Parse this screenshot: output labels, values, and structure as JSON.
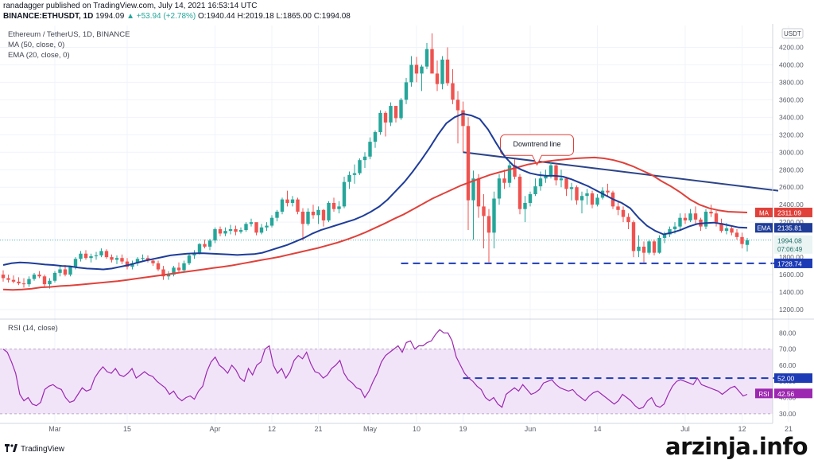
{
  "header": {
    "line1": "ranadagger published on TradingView.com, July 14, 2021 16:53:14 UTC",
    "symbol": "BINANCE:ETHUSDT, 1D",
    "price": "1994.09",
    "change": "▲ +53.94 (+2.78%)",
    "ohlc": "O:1940.44 H:2019.18 L:1865.00 C:1994.08"
  },
  "legend": {
    "title": "Ethereum / TetherUS, 1D, BINANCE",
    "ma": "MA (50, close, 0)",
    "ema": "EMA (20, close, 0)",
    "rsi": "RSI (14, close)"
  },
  "brand": "TradingView",
  "watermark": "arzinja.info",
  "colors": {
    "up": "#26a69a",
    "down": "#ef5350",
    "ma": "#e0413a",
    "ema": "#1e3c98",
    "trend": "#2c4488",
    "support": "#1d3bb5",
    "rsi": "#9c27b0",
    "rsi_band": "#f1e4f9"
  },
  "chart_data": [
    {
      "type": "candlestick",
      "title": "Ethereum / TetherUS, 1D, BINANCE",
      "currency_label": "USDT",
      "yticks": [
        1200,
        1400,
        1600,
        1800,
        2000,
        2200,
        2400,
        2600,
        2800,
        3000,
        3200,
        3400,
        3600,
        3800,
        4000,
        4200
      ],
      "ylim": [
        1100,
        4450
      ],
      "xticks": [
        {
          "label": "Mar",
          "day": 10
        },
        {
          "label": "15",
          "day": 24
        },
        {
          "label": "Apr",
          "day": 41
        },
        {
          "label": "12",
          "day": 52
        },
        {
          "label": "21",
          "day": 61
        },
        {
          "label": "May",
          "day": 71
        },
        {
          "label": "10",
          "day": 80
        },
        {
          "label": "19",
          "day": 89
        },
        {
          "label": "Jun",
          "day": 102
        },
        {
          "label": "14",
          "day": 115
        },
        {
          "label": "Jul",
          "day": 132
        },
        {
          "label": "12",
          "day": 143
        },
        {
          "label": "21",
          "day": 152
        }
      ],
      "candles": [
        [
          1600,
          1650,
          1520,
          1560
        ],
        [
          1560,
          1600,
          1510,
          1540
        ],
        [
          1540,
          1590,
          1500,
          1520
        ],
        [
          1520,
          1570,
          1480,
          1500
        ],
        [
          1500,
          1560,
          1450,
          1490
        ],
        [
          1490,
          1580,
          1460,
          1550
        ],
        [
          1550,
          1620,
          1530,
          1600
        ],
        [
          1600,
          1640,
          1560,
          1580
        ],
        [
          1580,
          1600,
          1460,
          1490
        ],
        [
          1490,
          1560,
          1440,
          1530
        ],
        [
          1530,
          1640,
          1510,
          1620
        ],
        [
          1620,
          1700,
          1580,
          1660
        ],
        [
          1660,
          1710,
          1580,
          1600
        ],
        [
          1600,
          1700,
          1580,
          1690
        ],
        [
          1690,
          1800,
          1660,
          1780
        ],
        [
          1780,
          1870,
          1750,
          1840
        ],
        [
          1840,
          1880,
          1770,
          1790
        ],
        [
          1790,
          1840,
          1740,
          1810
        ],
        [
          1810,
          1860,
          1770,
          1820
        ],
        [
          1820,
          1900,
          1800,
          1870
        ],
        [
          1870,
          1890,
          1780,
          1800
        ],
        [
          1800,
          1830,
          1740,
          1770
        ],
        [
          1770,
          1820,
          1720,
          1790
        ],
        [
          1790,
          1830,
          1720,
          1750
        ],
        [
          1750,
          1790,
          1660,
          1690
        ],
        [
          1690,
          1760,
          1660,
          1730
        ],
        [
          1730,
          1800,
          1700,
          1780
        ],
        [
          1780,
          1830,
          1750,
          1790
        ],
        [
          1790,
          1820,
          1740,
          1760
        ],
        [
          1760,
          1790,
          1700,
          1730
        ],
        [
          1730,
          1760,
          1640,
          1660
        ],
        [
          1660,
          1700,
          1540,
          1580
        ],
        [
          1580,
          1640,
          1540,
          1600
        ],
        [
          1600,
          1700,
          1580,
          1680
        ],
        [
          1680,
          1740,
          1620,
          1650
        ],
        [
          1650,
          1760,
          1630,
          1730
        ],
        [
          1730,
          1840,
          1710,
          1820
        ],
        [
          1820,
          1880,
          1780,
          1840
        ],
        [
          1840,
          1960,
          1830,
          1950
        ],
        [
          1950,
          2000,
          1900,
          1920
        ],
        [
          1920,
          2010,
          1880,
          1990
        ],
        [
          1990,
          2140,
          1960,
          2120
        ],
        [
          2120,
          2150,
          2040,
          2070
        ],
        [
          2070,
          2140,
          2040,
          2100
        ],
        [
          2100,
          2170,
          2060,
          2120
        ],
        [
          2120,
          2160,
          2050,
          2090
        ],
        [
          2090,
          2140,
          2070,
          2110
        ],
        [
          2110,
          2200,
          2090,
          2180
        ],
        [
          2180,
          2240,
          2150,
          2200
        ],
        [
          2200,
          2190,
          2050,
          2080
        ],
        [
          2080,
          2180,
          2060,
          2140
        ],
        [
          2140,
          2200,
          2100,
          2160
        ],
        [
          2160,
          2280,
          2140,
          2250
        ],
        [
          2250,
          2340,
          2210,
          2320
        ],
        [
          2320,
          2480,
          2290,
          2460
        ],
        [
          2460,
          2560,
          2380,
          2420
        ],
        [
          2420,
          2500,
          2380,
          2460
        ],
        [
          2460,
          2480,
          2290,
          2320
        ],
        [
          2320,
          2360,
          1990,
          2180
        ],
        [
          2180,
          2360,
          2160,
          2320
        ],
        [
          2320,
          2400,
          2240,
          2280
        ],
        [
          2280,
          2380,
          2180,
          2340
        ],
        [
          2340,
          2350,
          2150,
          2220
        ],
        [
          2220,
          2440,
          2200,
          2420
        ],
        [
          2420,
          2480,
          2320,
          2350
        ],
        [
          2350,
          2440,
          2300,
          2380
        ],
        [
          2380,
          2720,
          2360,
          2660
        ],
        [
          2660,
          2780,
          2580,
          2740
        ],
        [
          2740,
          2860,
          2640,
          2760
        ],
        [
          2760,
          2930,
          2740,
          2910
        ],
        [
          2910,
          3000,
          2820,
          2950
        ],
        [
          2950,
          3170,
          2920,
          3120
        ],
        [
          3120,
          3250,
          3050,
          3230
        ],
        [
          3230,
          3480,
          3200,
          3450
        ],
        [
          3450,
          3470,
          3180,
          3340
        ],
        [
          3340,
          3570,
          3300,
          3530
        ],
        [
          3530,
          3520,
          3340,
          3390
        ],
        [
          3390,
          3620,
          3370,
          3600
        ],
        [
          3600,
          3850,
          3550,
          3800
        ],
        [
          3800,
          4100,
          3750,
          4000
        ],
        [
          4000,
          4090,
          3800,
          3900
        ],
        [
          3900,
          4000,
          3700,
          3980
        ],
        [
          3980,
          4250,
          3950,
          4180
        ],
        [
          4180,
          4360,
          3930,
          3900
        ],
        [
          3900,
          4050,
          3700,
          3780
        ],
        [
          3780,
          4100,
          3720,
          4060
        ],
        [
          4060,
          4200,
          3760,
          3790
        ],
        [
          3790,
          3950,
          3550,
          3600
        ],
        [
          3600,
          3700,
          3100,
          3480
        ],
        [
          3480,
          3580,
          3000,
          3300
        ],
        [
          3300,
          3400,
          2110,
          2450
        ],
        [
          2450,
          2790,
          2000,
          2700
        ],
        [
          2700,
          2750,
          2250,
          2380
        ],
        [
          2380,
          2520,
          1900,
          2270
        ],
        [
          2270,
          2350,
          1740,
          2080
        ],
        [
          2080,
          2550,
          1900,
          2470
        ],
        [
          2470,
          2750,
          2400,
          2700
        ],
        [
          2700,
          2800,
          2580,
          2650
        ],
        [
          2650,
          2900,
          2600,
          2850
        ],
        [
          2850,
          2920,
          2690,
          2720
        ],
        [
          2720,
          2750,
          2290,
          2350
        ],
        [
          2350,
          2500,
          2200,
          2420
        ],
        [
          2420,
          2550,
          2380,
          2520
        ],
        [
          2520,
          2700,
          2500,
          2610
        ],
        [
          2610,
          2780,
          2560,
          2700
        ],
        [
          2700,
          2800,
          2650,
          2730
        ],
        [
          2730,
          2890,
          2700,
          2850
        ],
        [
          2850,
          2870,
          2620,
          2680
        ],
        [
          2680,
          2800,
          2600,
          2700
        ],
        [
          2700,
          2720,
          2500,
          2580
        ],
        [
          2580,
          2650,
          2450,
          2600
        ],
        [
          2600,
          2620,
          2400,
          2450
        ],
        [
          2450,
          2550,
          2300,
          2500
        ],
        [
          2500,
          2580,
          2400,
          2530
        ],
        [
          2530,
          2560,
          2360,
          2400
        ],
        [
          2400,
          2520,
          2380,
          2480
        ],
        [
          2480,
          2600,
          2460,
          2560
        ],
        [
          2560,
          2640,
          2500,
          2540
        ],
        [
          2540,
          2560,
          2350,
          2380
        ],
        [
          2380,
          2430,
          2280,
          2340
        ],
        [
          2340,
          2380,
          2200,
          2260
        ],
        [
          2260,
          2300,
          2120,
          2200
        ],
        [
          2200,
          2220,
          1800,
          1870
        ],
        [
          1870,
          2050,
          1800,
          1920
        ],
        [
          1920,
          1980,
          1740,
          1850
        ],
        [
          1850,
          2000,
          1830,
          1980
        ],
        [
          1980,
          2000,
          1820,
          1850
        ],
        [
          1850,
          2050,
          1840,
          2020
        ],
        [
          2020,
          2090,
          1960,
          2060
        ],
        [
          2060,
          2150,
          2030,
          2120
        ],
        [
          2120,
          2200,
          2070,
          2150
        ],
        [
          2150,
          2300,
          2100,
          2250
        ],
        [
          2250,
          2300,
          2180,
          2220
        ],
        [
          2220,
          2350,
          2200,
          2300
        ],
        [
          2300,
          2380,
          2180,
          2230
        ],
        [
          2230,
          2250,
          2100,
          2150
        ],
        [
          2150,
          2350,
          2120,
          2320
        ],
        [
          2320,
          2400,
          2260,
          2300
        ],
        [
          2300,
          2330,
          2150,
          2190
        ],
        [
          2190,
          2240,
          2080,
          2100
        ],
        [
          2100,
          2190,
          2060,
          2130
        ],
        [
          2130,
          2160,
          2050,
          2080
        ],
        [
          2080,
          2120,
          2000,
          2030
        ],
        [
          2030,
          2080,
          1900,
          1950
        ],
        [
          1940,
          2020,
          1865,
          1994
        ]
      ],
      "ma50": [
        1430,
        1425,
        1430,
        1440,
        1455,
        1460,
        1470,
        1475,
        1485,
        1495,
        1505,
        1515,
        1525,
        1540,
        1555,
        1570,
        1585,
        1600,
        1615,
        1630,
        1645,
        1660,
        1675,
        1690,
        1705,
        1725,
        1745,
        1765,
        1785,
        1805,
        1830,
        1855,
        1880,
        1905,
        1935,
        1965,
        2000,
        2040,
        2085,
        2135,
        2185,
        2240,
        2290,
        2350,
        2410,
        2470,
        2520,
        2570,
        2620,
        2660,
        2700,
        2740,
        2770,
        2800,
        2830,
        2860,
        2880,
        2895,
        2910,
        2920,
        2930,
        2935,
        2940,
        2930,
        2910,
        2880,
        2840,
        2790,
        2740,
        2670,
        2610,
        2540,
        2460,
        2400,
        2360,
        2335,
        2320,
        2315,
        2311
      ],
      "ma50_start_day": 0,
      "ema20": [
        1710,
        1730,
        1740,
        1735,
        1725,
        1715,
        1710,
        1700,
        1695,
        1680,
        1670,
        1665,
        1660,
        1670,
        1690,
        1710,
        1735,
        1760,
        1780,
        1800,
        1820,
        1830,
        1840,
        1845,
        1845,
        1840,
        1835,
        1830,
        1825,
        1830,
        1835,
        1850,
        1880,
        1910,
        1940,
        1980,
        2020,
        2070,
        2110,
        2140,
        2170,
        2200,
        2230,
        2270,
        2320,
        2380,
        2460,
        2560,
        2660,
        2780,
        2910,
        3050,
        3200,
        3330,
        3400,
        3440,
        3420,
        3380,
        3260,
        3100,
        2950,
        2850,
        2800,
        2760,
        2740,
        2730,
        2730,
        2720,
        2690,
        2650,
        2610,
        2560,
        2510,
        2460,
        2420,
        2360,
        2250,
        2160,
        2100,
        2060,
        2080,
        2110,
        2150,
        2180,
        2190,
        2195,
        2180,
        2160,
        2140,
        2136
      ],
      "ema20_start_day": 0,
      "trendline": [
        [
          89,
          3000
        ],
        [
          150,
          2560
        ]
      ],
      "support_level": 1728.74,
      "support_range": [
        77,
        153
      ],
      "price_labels": [
        {
          "name": "MA",
          "value": 2311.09
        },
        {
          "name": "EMA",
          "value": 2135.81
        },
        {
          "name": "last",
          "value": 1994.08,
          "countdown": "07:06:49"
        },
        {
          "name": "support",
          "value": 1728.74
        }
      ],
      "annotation": "Downtrend line"
    },
    {
      "type": "line",
      "title": "RSI (14, close)",
      "ylim": [
        25,
        88
      ],
      "yticks": [
        30,
        40,
        50,
        60,
        70,
        80
      ],
      "band": [
        30,
        70
      ],
      "horizontal_level": 52.0,
      "horizontal_range": [
        89,
        153
      ],
      "last_value": 42.56,
      "values": [
        70,
        68,
        62,
        55,
        42,
        38,
        40,
        36,
        35,
        37,
        45,
        47,
        48,
        46,
        45,
        40,
        37,
        38,
        42,
        46,
        44,
        45,
        52,
        56,
        59,
        56,
        55,
        58,
        54,
        53,
        55,
        58,
        52,
        54,
        56,
        54,
        53,
        50,
        48,
        46,
        42,
        44,
        40,
        38,
        40,
        41,
        39,
        44,
        47,
        56,
        62,
        65,
        60,
        58,
        55,
        60,
        57,
        52,
        50,
        58,
        54,
        60,
        62,
        70,
        72,
        60,
        55,
        58,
        52,
        56,
        63,
        66,
        64,
        68,
        61,
        56,
        55,
        52,
        54,
        58,
        60,
        63,
        55,
        51,
        49,
        46,
        45,
        40,
        44,
        50,
        55,
        62,
        66,
        68,
        70,
        72,
        68,
        74,
        75,
        70,
        72,
        72,
        74,
        75,
        79,
        82,
        80,
        80,
        75,
        65,
        60,
        55,
        52,
        50,
        47,
        45,
        40,
        38,
        40,
        36,
        34,
        42,
        44,
        46,
        44,
        48,
        45,
        42,
        43,
        45,
        49,
        50,
        51,
        48,
        46,
        45,
        44,
        45,
        42,
        40,
        38,
        41,
        43,
        44,
        42,
        40,
        38,
        36,
        38,
        42,
        40,
        38,
        35,
        33,
        34,
        38,
        40,
        35,
        34,
        36,
        42,
        47,
        50,
        51,
        50,
        49,
        48,
        52,
        48,
        47,
        46,
        45,
        44,
        42,
        44,
        46,
        47,
        44,
        41,
        42
      ]
    }
  ]
}
